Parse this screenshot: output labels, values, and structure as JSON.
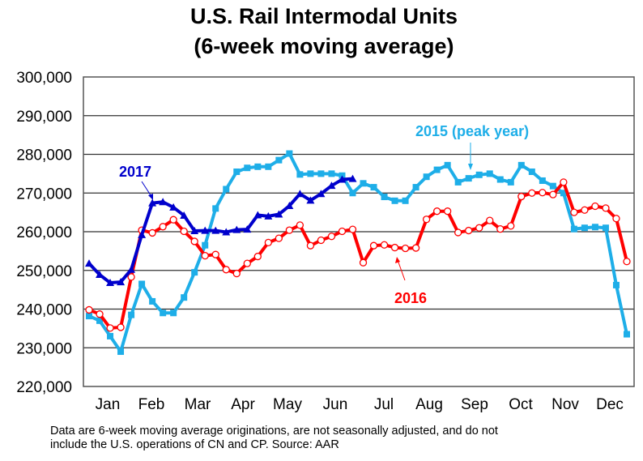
{
  "chart_data": {
    "type": "line",
    "title": [
      "U.S. Rail Intermodal Units",
      "(6-week moving average)"
    ],
    "xlabel": "",
    "ylabel": "",
    "ylim": [
      220000,
      300000
    ],
    "yticks": [
      220000,
      230000,
      240000,
      250000,
      260000,
      270000,
      280000,
      290000,
      300000
    ],
    "ytick_labels": [
      "220,000",
      "230,000",
      "240,000",
      "250,000",
      "260,000",
      "270,000",
      "280,000",
      "290,000",
      "300,000"
    ],
    "x_unit": "week of year (1-52)",
    "xlim": [
      1,
      52
    ],
    "month_labels": [
      "Jan",
      "Feb",
      "Mar",
      "Apr",
      "May",
      "Jun",
      "Jul",
      "Aug",
      "Sep",
      "Oct",
      "Nov",
      "Dec"
    ],
    "grid": "horizontal",
    "series": [
      {
        "name": "2015 (peak year)",
        "color": "#1eaee8",
        "marker": "square",
        "values": [
          238200,
          237000,
          233000,
          229000,
          238500,
          246500,
          242000,
          239000,
          239000,
          243000,
          249500,
          256500,
          266000,
          271000,
          275500,
          276500,
          276800,
          276800,
          278500,
          280200,
          274800,
          275000,
          275000,
          275000,
          274500,
          270000,
          272500,
          271500,
          269000,
          268000,
          268000,
          271500,
          274200,
          276000,
          277200,
          272800,
          273800,
          274700,
          275000,
          273500,
          272800,
          277200,
          275500,
          273200,
          271800,
          270000,
          260700,
          261000,
          261200,
          261000,
          246200,
          233500
        ]
      },
      {
        "name": "2016",
        "color": "#ff0000",
        "marker": "open-circle",
        "values": [
          239800,
          238700,
          235100,
          235300,
          248300,
          260400,
          259700,
          261300,
          263100,
          260100,
          257500,
          253800,
          254100,
          250200,
          249200,
          251800,
          253600,
          257200,
          258300,
          260400,
          261700,
          256400,
          257800,
          258800,
          260100,
          260600,
          252000,
          256400,
          256600,
          255900,
          255700,
          255800,
          263200,
          265300,
          265300,
          259800,
          260300,
          261000,
          262900,
          260700,
          261500,
          269100,
          270000,
          270100,
          269600,
          272800,
          265000,
          265600,
          266600,
          266100,
          263400,
          252300
        ]
      },
      {
        "name": "2017",
        "color": "#0000cc",
        "marker": "triangle",
        "values": [
          251800,
          248900,
          246800,
          247000,
          250200,
          259200,
          267400,
          267700,
          266300,
          264200,
          260200,
          260300,
          260300,
          259900,
          260500,
          260600,
          264300,
          264000,
          264500,
          266700,
          269800,
          268100,
          269800,
          271900,
          273500,
          273700
        ]
      }
    ],
    "annotations": [
      "2017",
      "2015 (peak year)",
      "2016"
    ]
  },
  "footnote": [
    "Data are 6-week moving average originations, are not seasonally adjusted, and do not",
    "include the U.S. operations of CN and CP.   Source: AAR"
  ]
}
